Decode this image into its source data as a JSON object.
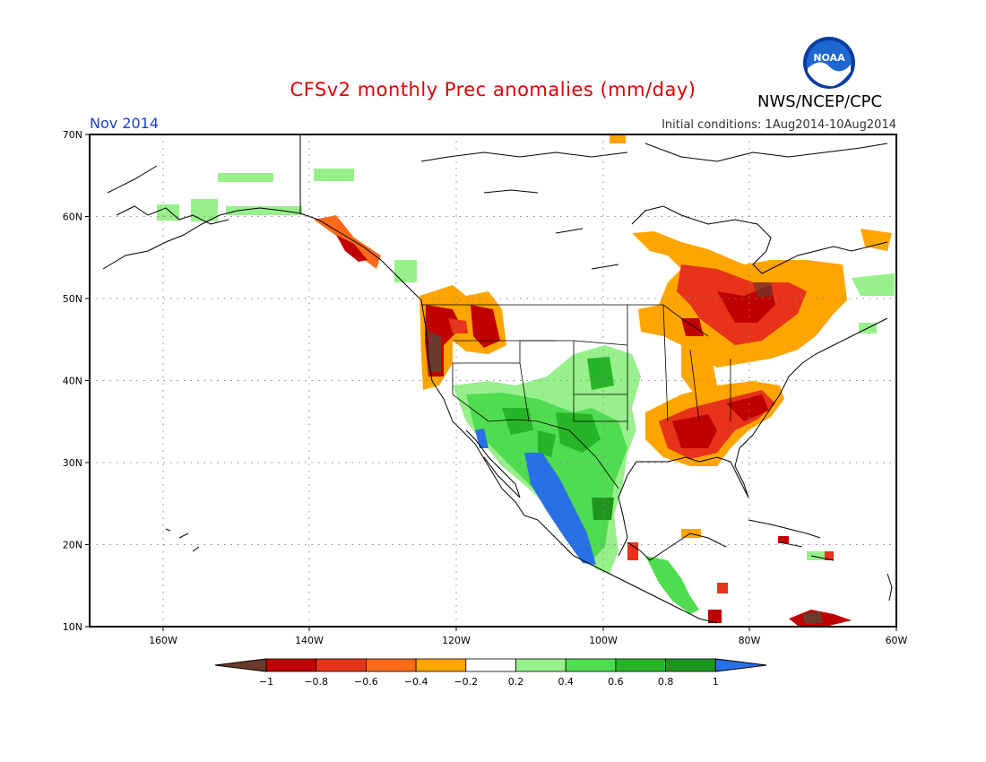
{
  "title": "CFSv2 monthly Prec anomalies (mm/day)",
  "org": "NWS/NCEP/CPC",
  "logo_text": "NOAA",
  "month": "Nov 2014",
  "initial_conditions": "Initial conditions: 1Aug2014-10Aug2014",
  "lat_labels": [
    "70N",
    "60N",
    "50N",
    "40N",
    "30N",
    "20N",
    "10N"
  ],
  "lon_labels": [
    "160W",
    "140W",
    "120W",
    "100W",
    "80W",
    "60W"
  ],
  "colorbar": {
    "labels": [
      "−1",
      "−0.8",
      "−0.6",
      "−0.4",
      "−0.2",
      "0.2",
      "0.4",
      "0.6",
      "0.8",
      "1"
    ],
    "colors": [
      "#6b3a2a",
      "#c00000",
      "#e63319",
      "#ff6a1a",
      "#ffa500",
      "#ffffff",
      "#98f08c",
      "#50dc50",
      "#28b428",
      "#1e961e",
      "#2870e6"
    ]
  }
}
